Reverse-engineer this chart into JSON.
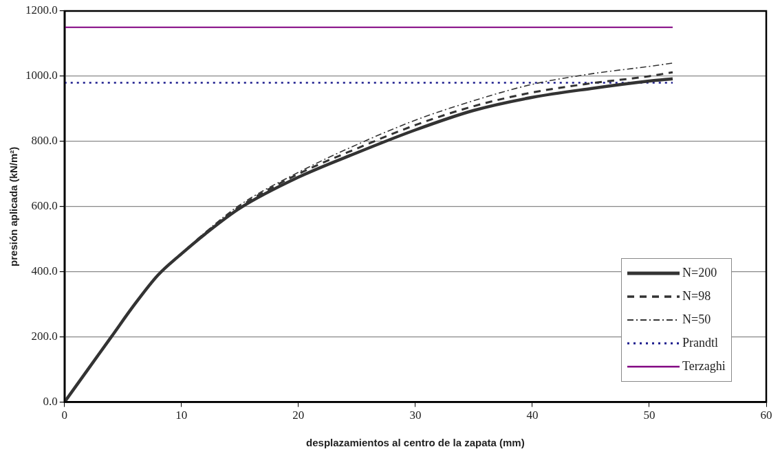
{
  "chart_data": {
    "type": "line",
    "xlabel": "desplazamientos al centro de la zapata (mm)",
    "ylabel": "presión aplicada (kN/m²)",
    "xlim": [
      0,
      60
    ],
    "xticks": [
      0,
      10,
      20,
      30,
      40,
      50,
      60
    ],
    "ylim": [
      0,
      1200
    ],
    "yticks": [
      {
        "value": 0,
        "label": "0.0"
      },
      {
        "value": 200,
        "label": "200.0"
      },
      {
        "value": 400,
        "label": "400.0"
      },
      {
        "value": 600,
        "label": "600.0"
      },
      {
        "value": 800,
        "label": "800.0"
      },
      {
        "value": 1000,
        "label": "1000.0"
      },
      {
        "value": 1200,
        "label": "1200.0"
      }
    ],
    "grid": "y",
    "legend": "bottom right",
    "marker": "none",
    "series": [
      {
        "name": "N=200",
        "color": "#333333",
        "line_style": "solid",
        "x": [
          0,
          2,
          4,
          6,
          8,
          10,
          12,
          15,
          20,
          25,
          30,
          35,
          40,
          45,
          50,
          52
        ],
        "values": [
          0,
          100,
          200,
          300,
          390,
          455,
          515,
          595,
          690,
          765,
          835,
          895,
          935,
          962,
          985,
          992
        ]
      },
      {
        "name": "N=98",
        "color": "#333333",
        "line_style": "dashed",
        "x": [
          0,
          2,
          4,
          6,
          8,
          10,
          12,
          15,
          20,
          25,
          30,
          35,
          40,
          45,
          50,
          52
        ],
        "values": [
          0,
          100,
          200,
          300,
          390,
          455,
          518,
          600,
          700,
          778,
          850,
          908,
          950,
          978,
          1000,
          1012
        ]
      },
      {
        "name": "N=50",
        "color": "#333333",
        "line_style": "dashdot",
        "x": [
          0,
          2,
          4,
          6,
          8,
          10,
          12,
          15,
          20,
          25,
          30,
          35,
          40,
          45,
          50,
          52
        ],
        "values": [
          0,
          100,
          200,
          300,
          390,
          455,
          520,
          605,
          705,
          790,
          865,
          925,
          975,
          1007,
          1030,
          1040
        ]
      },
      {
        "name": "Prandtl",
        "color": "#1a1a8c",
        "line_style": "dotted",
        "x": [
          0,
          52
        ],
        "values": [
          980,
          980
        ]
      },
      {
        "name": "Terzaghi",
        "color": "#800080",
        "line_style": "solid",
        "x": [
          0,
          52
        ],
        "values": [
          1150,
          1150
        ]
      }
    ]
  }
}
